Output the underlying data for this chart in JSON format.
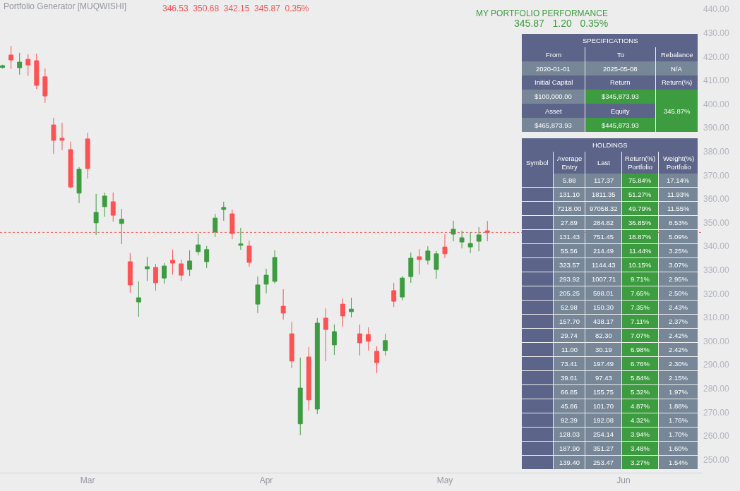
{
  "chart_data": [
    {
      "type": "candlestick",
      "title": "Portfolio Generator [MUQWISHI]",
      "subtitle": "346.53  350.68  342.15  345.87  0.35%",
      "categories": [
        null,
        null,
        null,
        null,
        null,
        null,
        null,
        null,
        null,
        null,
        "Mar",
        null,
        null,
        null,
        null,
        null,
        null,
        null,
        null,
        null,
        null,
        null,
        null,
        null,
        null,
        null,
        null,
        null,
        null,
        null,
        null,
        "Apr",
        null,
        null,
        null,
        null,
        null,
        null,
        null,
        null,
        null,
        null,
        null,
        null,
        null,
        null,
        null,
        null,
        null,
        null,
        null,
        null,
        "May",
        null,
        null,
        null,
        null,
        null,
        null,
        null,
        null,
        null,
        null,
        null,
        null,
        null,
        null,
        null,
        null,
        null,
        null,
        null,
        null,
        "Jun",
        null,
        null,
        null,
        null,
        null,
        null,
        null,
        null,
        null
      ],
      "ohlc": [
        [
          415.4,
          416.6,
          415.0,
          416.2
        ],
        [
          420.7,
          424.6,
          414.8,
          418.6
        ],
        [
          415.3,
          421.6,
          412.4,
          417.7
        ],
        [
          418.9,
          421.0,
          411.9,
          416.5
        ],
        [
          418.3,
          421.3,
          406.4,
          407.9
        ],
        [
          411.5,
          415.0,
          400.5,
          403.4
        ],
        [
          391.2,
          394.2,
          379.0,
          384.7
        ],
        [
          385.6,
          392.1,
          380.5,
          384.7
        ],
        [
          380.8,
          384.1,
          364.4,
          365.0
        ],
        [
          362.4,
          373.4,
          358.2,
          372.5
        ],
        [
          385.3,
          387.9,
          368.6,
          372.8
        ],
        [
          349.9,
          362.1,
          344.8,
          354.3
        ],
        [
          356.7,
          362.7,
          352.5,
          361.2
        ],
        [
          358.8,
          362.7,
          350.4,
          353.1
        ],
        [
          349.6,
          355.8,
          340.9,
          351.4
        ],
        [
          333.5,
          337.1,
          320.4,
          323.7
        ],
        [
          316.5,
          325.2,
          310.3,
          318.3
        ],
        [
          330.5,
          335.6,
          325.4,
          331.4
        ],
        [
          331.1,
          332.6,
          321.3,
          324.6
        ],
        [
          326.6,
          332.9,
          324.3,
          331.7
        ],
        [
          334.1,
          338.5,
          328.1,
          332.9
        ],
        [
          332.6,
          334.4,
          325.4,
          327.8
        ],
        [
          330.2,
          338.3,
          327.5,
          333.8
        ],
        [
          337.7,
          345.1,
          336.2,
          340.6
        ],
        [
          333.5,
          340.1,
          330.8,
          338.6
        ],
        [
          346.0,
          353.7,
          343.9,
          351.9
        ],
        [
          355.5,
          358.8,
          350.8,
          356.4
        ],
        [
          353.7,
          355.5,
          343.0,
          345.4
        ],
        [
          340.4,
          347.8,
          338.5,
          341.0
        ],
        [
          340.1,
          342.4,
          331.4,
          333.2
        ],
        [
          315.6,
          327.3,
          311.8,
          323.7
        ],
        [
          324.0,
          330.5,
          320.1,
          327.8
        ],
        [
          325.2,
          338.3,
          324.3,
          335.3
        ],
        [
          314.7,
          321.9,
          309.1,
          311.8
        ],
        [
          303.1,
          308.2,
          288.6,
          291.6
        ],
        [
          265.1,
          293.0,
          260.3,
          280.2
        ],
        [
          293.3,
          297.5,
          270.7,
          275.2
        ],
        [
          271.3,
          309.7,
          269.2,
          307.6
        ],
        [
          309.7,
          313.8,
          291.5,
          304.9
        ],
        [
          298.4,
          307.0,
          294.2,
          304.0
        ],
        [
          315.6,
          318.0,
          306.1,
          310.6
        ],
        [
          312.4,
          318.3,
          310.0,
          313.5
        ],
        [
          303.1,
          307.0,
          293.9,
          299.3
        ],
        [
          302.8,
          305.8,
          296.0,
          299.9
        ],
        [
          295.7,
          297.8,
          286.5,
          290.9
        ],
        [
          296.0,
          303.1,
          293.9,
          300.2
        ],
        [
          321.3,
          324.6,
          314.4,
          316.8
        ],
        [
          318.6,
          327.5,
          317.1,
          326.6
        ],
        [
          327.2,
          337.4,
          324.6,
          335.0
        ],
        [
          335.6,
          338.8,
          328.1,
          334.4
        ],
        [
          334.1,
          340.0,
          332.3,
          338.0
        ],
        [
          330.2,
          338.0,
          326.3,
          336.8
        ],
        [
          339.7,
          345.1,
          335.0,
          336.8
        ],
        [
          345.1,
          350.8,
          342.1,
          347.2
        ],
        [
          341.8,
          346.6,
          339.1,
          343.6
        ],
        [
          339.7,
          346.0,
          337.1,
          341.2
        ],
        [
          342.1,
          348.1,
          337.9,
          344.8
        ],
        [
          346.53,
          350.68,
          342.15,
          345.87
        ],
        null,
        null,
        null,
        null,
        null,
        null,
        null,
        null,
        null,
        null,
        null,
        null,
        null,
        null,
        null,
        null,
        null,
        null,
        null,
        null,
        null,
        null,
        null,
        null,
        null
      ],
      "colors": [
        "#3d9c40",
        "#ff5252",
        "#3d9c40",
        "#ff5252",
        "#ff5252",
        "#ff5252",
        "#ff5252",
        "#ff5252",
        "#ff5252",
        "#3d9c40",
        "#ff5252",
        "#3d9c40",
        "#3d9c40",
        "#ff5252",
        "#3d9c40",
        "#ff5252",
        "#3d9c40",
        "#3d9c40",
        "#ff5252",
        "#3d9c40",
        "#ff5252",
        "#ff5252",
        "#3d9c40",
        "#3d9c40",
        "#3d9c40",
        "#3d9c40",
        "#3d9c40",
        "#ff5252",
        "#3d9c40",
        "#ff5252",
        "#3d9c40",
        "#3d9c40",
        "#3d9c40",
        "#ff5252",
        "#ff5252",
        "#3d9c40",
        "#ff5252",
        "#3d9c40",
        "#ff5252",
        "#3d9c40",
        "#ff5252",
        "#3d9c40",
        "#ff5252",
        "#ff5252",
        "#ff5252",
        "#3d9c40",
        "#ff5252",
        "#3d9c40",
        "#3d9c40",
        "#ff5252",
        "#3d9c40",
        "#3d9c40",
        "#ff5252",
        "#3d9c40",
        "#3d9c40",
        "#3d9c40",
        "#3d9c40",
        "#ff5252",
        null,
        null,
        null,
        null,
        null,
        null,
        null,
        null,
        null,
        null,
        null,
        null,
        null,
        null,
        null,
        null,
        null,
        null,
        null,
        null,
        null,
        null,
        null,
        null,
        null
      ],
      "ylim": [
        244.5,
        443.9
      ],
      "yticks": [
        {
          "value": 250,
          "label": "250.00"
        },
        {
          "value": 260,
          "label": "260.00"
        },
        {
          "value": 270,
          "label": "270.00"
        },
        {
          "value": 280,
          "label": "280.00"
        },
        {
          "value": 290,
          "label": "290.00"
        },
        {
          "value": 300,
          "label": "300.00"
        },
        {
          "value": 310,
          "label": "310.00"
        },
        {
          "value": 320,
          "label": "320.00"
        },
        {
          "value": 330,
          "label": "330.00"
        },
        {
          "value": 340,
          "label": "340.00"
        },
        {
          "value": 350,
          "label": "350.00"
        },
        {
          "value": 360,
          "label": "360.00"
        },
        {
          "value": 370,
          "label": "370.00"
        },
        {
          "value": 380,
          "label": "380.00"
        },
        {
          "value": 390,
          "label": "390.00"
        },
        {
          "value": 400,
          "label": "400.00"
        },
        {
          "value": 410,
          "label": "410.00"
        },
        {
          "value": 420,
          "label": "420.00"
        },
        {
          "value": 430,
          "label": "430.00"
        },
        {
          "value": 440,
          "label": "440.00"
        }
      ],
      "ref_lines": [
        {
          "axis": "y",
          "value": 345.87,
          "color": "#ff5252",
          "line_style": "dotted"
        }
      ],
      "grid": false,
      "legend": false
    },
    {
      "type": "other",
      "title": "MY PORTFOLIO PERFORMANCE",
      "subtitle": "345.87   1.20   0.35%",
      "annotations": [
        "SPECIFICATIONS",
        "From",
        "To",
        "Rebalance",
        "2020-01-01",
        "2025-05-08",
        "N/A",
        "Initial Capital",
        "Return",
        "Return(%)",
        "$100,000.00",
        "$345,873.93",
        "345.87%",
        "Asset",
        "Equity",
        "$465,873.93",
        "$445,873.93",
        "HOLDINGS",
        "Symbol",
        "Average\nEntry",
        "Last",
        "Return(%)\nPortfolio",
        "Weight(%)\nPortfolio",
        "5.88",
        "117.37",
        "75.84%",
        "17.14%",
        "131.10",
        "1811.35",
        "51.27%",
        "11.93%",
        "7218.00",
        "97058.32",
        "49.79%",
        "11.55%",
        "27.89",
        "284.82",
        "36.85%",
        "8.53%",
        "131.43",
        "751.45",
        "18.87%",
        "5.09%",
        "55.56",
        "214.49",
        "11.44%",
        "3.25%",
        "323.57",
        "1144.43",
        "10.15%",
        "3.07%",
        "293.92",
        "1007.71",
        "9.71%",
        "2.95%",
        "205.25",
        "598.01",
        "7.65%",
        "2.50%",
        "52.98",
        "150.30",
        "7.35%",
        "2.43%",
        "157.70",
        "438.17",
        "7.11%",
        "2.37%",
        "29.74",
        "82.30",
        "7.07%",
        "2.42%",
        "11.00",
        "30.19",
        "6.98%",
        "2.42%",
        "73.41",
        "197.49",
        "6.76%",
        "2.30%",
        "39.61",
        "97.43",
        "5.84%",
        "2.15%",
        "66.85",
        "155.75",
        "5.32%",
        "1.97%",
        "45.86",
        "101.70",
        "4.87%",
        "1.88%",
        "92.39",
        "192.08",
        "4.32%",
        "1.76%",
        "128.03",
        "254.14",
        "3.94%",
        "1.70%",
        "187.90",
        "351.27",
        "3.48%",
        "1.60%",
        "139.40",
        "253.47",
        "3.27%",
        "1.54%"
      ]
    }
  ]
}
